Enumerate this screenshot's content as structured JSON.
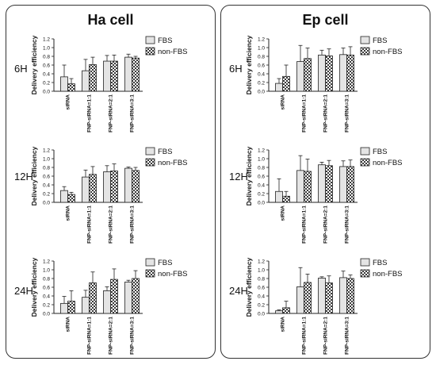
{
  "panels": [
    {
      "title": "Ha cell",
      "times": [
        "6H",
        "12H",
        "24H"
      ]
    },
    {
      "title": "Ep cell",
      "times": [
        "6H",
        "12H",
        "24H"
      ]
    }
  ],
  "colors": {
    "fbs_fill": "#e4e4e4",
    "non_fbs_pattern": "checker",
    "stroke": "#222222"
  },
  "chart_data": [
    {
      "type": "bar",
      "panel": "Ha cell",
      "time": "6H",
      "ylabel": "Delivery efficiency",
      "ylim": [
        0,
        1.2
      ],
      "yticks": [
        "0.0",
        "0.2",
        "0.4",
        "0.6",
        "0.8",
        "1.0",
        "1.2"
      ],
      "categories": [
        "siRNA",
        "FNP-siRNA=1:1",
        "FNP-siRNA=2:1",
        "FNP-siRNA=3:1"
      ],
      "series": [
        {
          "name": "FBS",
          "values": [
            0.33,
            0.47,
            0.69,
            0.78
          ],
          "errors": [
            0.27,
            0.26,
            0.13,
            0.07
          ]
        },
        {
          "name": "non-FBS",
          "values": [
            0.17,
            0.61,
            0.69,
            0.76
          ],
          "errors": [
            0.12,
            0.17,
            0.14,
            0.04
          ]
        }
      ]
    },
    {
      "type": "bar",
      "panel": "Ha cell",
      "time": "12H",
      "ylabel": "Delivery efficiency",
      "ylim": [
        0,
        1.2
      ],
      "yticks": [
        "0.0",
        "0.2",
        "0.4",
        "0.6",
        "0.8",
        "1.0",
        "1.2"
      ],
      "categories": [
        "siRNA",
        "FNP-siRNA=1:1",
        "FNP-siRNA=2:1",
        "FNP-siRNA=3:1"
      ],
      "series": [
        {
          "name": "FBS",
          "values": [
            0.27,
            0.58,
            0.7,
            0.78
          ],
          "errors": [
            0.09,
            0.16,
            0.14,
            0.03
          ]
        },
        {
          "name": "non-FBS",
          "values": [
            0.18,
            0.64,
            0.72,
            0.73
          ],
          "errors": [
            0.05,
            0.18,
            0.16,
            0.07
          ]
        }
      ]
    },
    {
      "type": "bar",
      "panel": "Ha cell",
      "time": "24H",
      "ylabel": "Delivery efficiency",
      "ylim": [
        0,
        1.2
      ],
      "yticks": [
        "0.0",
        "0.2",
        "0.4",
        "0.6",
        "0.8",
        "1.0",
        "1.2"
      ],
      "categories": [
        "siRNA",
        "FNP-siRNA=1:1",
        "FNP-siRNA=2:1",
        "FNP-siRNA=3:1"
      ],
      "series": [
        {
          "name": "FBS",
          "values": [
            0.23,
            0.37,
            0.52,
            0.72
          ],
          "errors": [
            0.16,
            0.16,
            0.09,
            0.04
          ]
        },
        {
          "name": "non-FBS",
          "values": [
            0.28,
            0.7,
            0.78,
            0.8
          ],
          "errors": [
            0.24,
            0.25,
            0.24,
            0.18
          ]
        }
      ]
    },
    {
      "type": "bar",
      "panel": "Ep cell",
      "time": "6H",
      "ylabel": "Delivery efficiency",
      "ylim": [
        0,
        1.2
      ],
      "yticks": [
        "0.0",
        "0.2",
        "0.4",
        "0.6",
        "0.8",
        "1.0",
        "1.2"
      ],
      "categories": [
        "siRNA",
        "FNP-siRNA=1:1",
        "FNP-siRNA=2:1",
        "FNP-siRNA=3:1"
      ],
      "series": [
        {
          "name": "FBS",
          "values": [
            0.18,
            0.68,
            0.83,
            0.84
          ],
          "errors": [
            0.11,
            0.37,
            0.11,
            0.15
          ]
        },
        {
          "name": "non-FBS",
          "values": [
            0.34,
            0.75,
            0.81,
            0.83
          ],
          "errors": [
            0.26,
            0.24,
            0.16,
            0.19
          ]
        }
      ]
    },
    {
      "type": "bar",
      "panel": "Ep cell",
      "time": "12H",
      "ylabel": "Delivery efficiency",
      "ylim": [
        0,
        1.2
      ],
      "yticks": [
        "0.0",
        "0.2",
        "0.4",
        "0.6",
        "0.8",
        "1.0",
        "1.2"
      ],
      "categories": [
        "siRNA",
        "FNP-siRNA=1:1",
        "FNP-siRNA=2:1",
        "FNP-siRNA=3:1"
      ],
      "series": [
        {
          "name": "FBS",
          "values": [
            0.25,
            0.73,
            0.86,
            0.82
          ],
          "errors": [
            0.29,
            0.34,
            0.06,
            0.13
          ]
        },
        {
          "name": "non-FBS",
          "values": [
            0.14,
            0.71,
            0.84,
            0.82
          ],
          "errors": [
            0.11,
            0.28,
            0.12,
            0.15
          ]
        }
      ]
    },
    {
      "type": "bar",
      "panel": "Ep cell",
      "time": "24H",
      "ylabel": "Delivery efficiency",
      "ylim": [
        0,
        1.2
      ],
      "yticks": [
        "0.0",
        "0.2",
        "0.4",
        "0.6",
        "0.8",
        "1.0",
        "1.2"
      ],
      "categories": [
        "siRNA",
        "FNP-siRNA=1:1",
        "FNP-siRNA=2:1",
        "FNP-siRNA=3:1"
      ],
      "series": [
        {
          "name": "FBS",
          "values": [
            0.06,
            0.61,
            0.81,
            0.82
          ],
          "errors": [
            0.02,
            0.44,
            0.03,
            0.15
          ]
        },
        {
          "name": "non-FBS",
          "values": [
            0.13,
            0.71,
            0.7,
            0.8
          ],
          "errors": [
            0.15,
            0.19,
            0.16,
            0.08
          ]
        }
      ]
    }
  ]
}
